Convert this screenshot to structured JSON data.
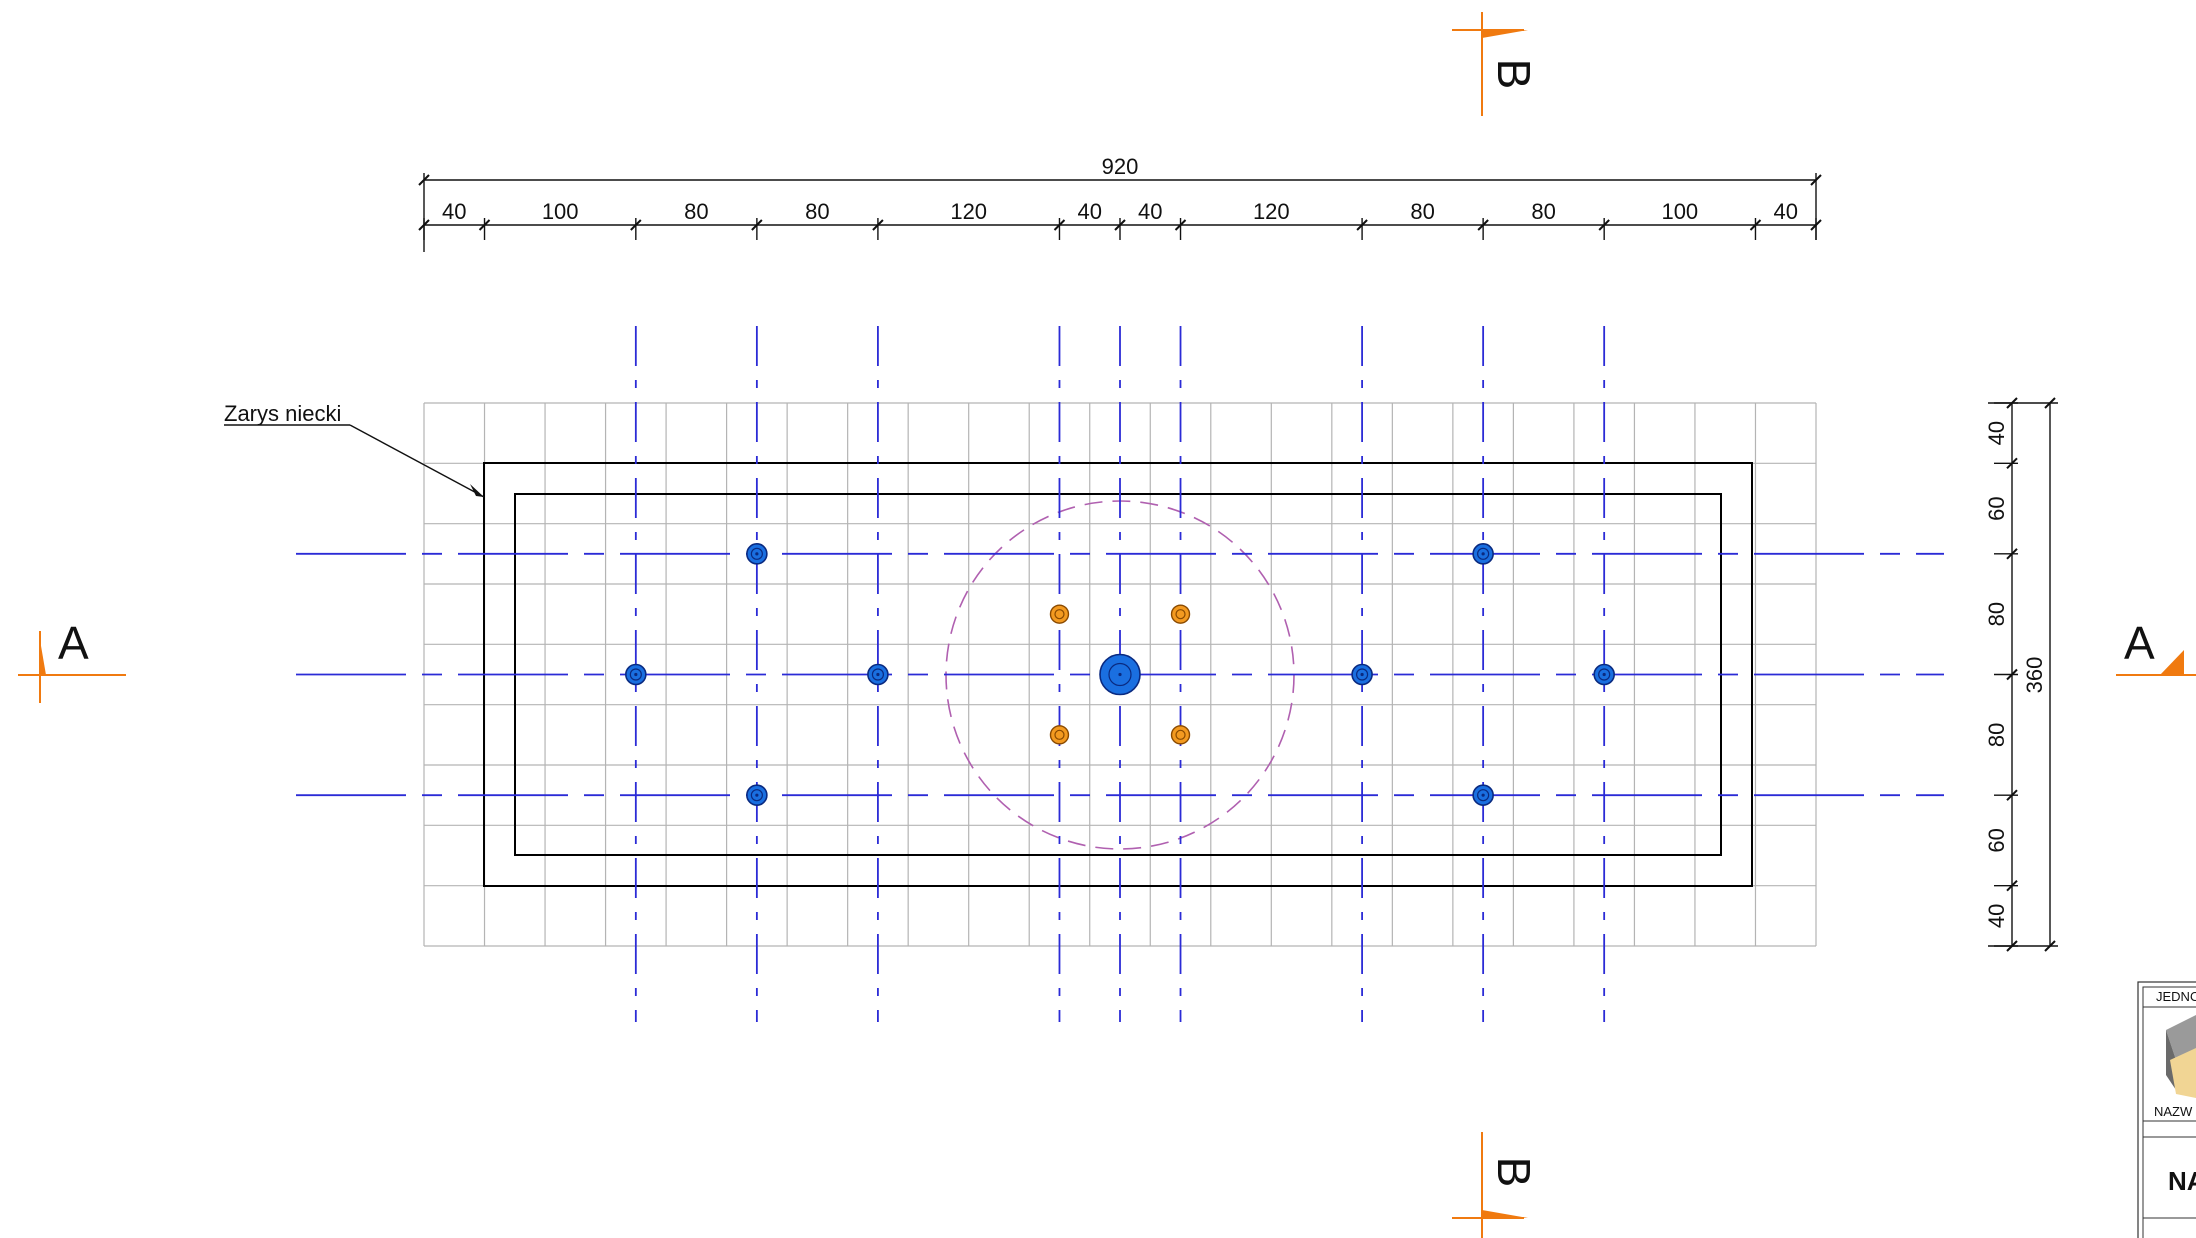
{
  "callout": {
    "label": "Zarys niecki"
  },
  "dimensions": {
    "overall_horizontal": "920",
    "horizontal_segments": [
      "40",
      "100",
      "80",
      "80",
      "120",
      "40",
      "40",
      "120",
      "80",
      "80",
      "100",
      "40"
    ],
    "overall_vertical": "360",
    "vertical_segments": [
      "40",
      "60",
      "80",
      "80",
      "60",
      "40"
    ]
  },
  "sections": {
    "a_left": "A",
    "a_right": "A",
    "b_top": "B",
    "b_bottom": "B"
  },
  "title_block": {
    "unit_label": "JEDNO",
    "name_label": "NAZW",
    "name_value": "NA"
  },
  "colors": {
    "axis_line": "#2b2bd6",
    "outline": "#000000",
    "grid": "#b4b4b4",
    "fitting_fill": "#1a6fe0",
    "nozzle_fill": "#f39a20",
    "light_ring": "#b060b0",
    "section_marker": "#f07a10"
  }
}
